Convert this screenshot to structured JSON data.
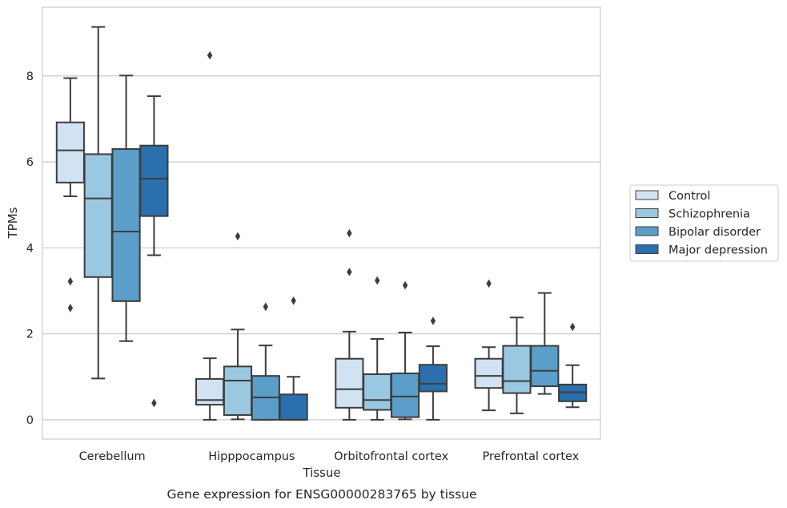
{
  "chart_data": {
    "type": "box",
    "xlabel": "Tissue",
    "ylabel": "TPMs",
    "caption": "Gene expression for ENSG00000283765 by tissue",
    "ylim": [
      -0.45,
      9.6
    ],
    "yticks": [
      0,
      2,
      4,
      6,
      8
    ],
    "grid": "horizontal",
    "legend_position": "right",
    "categories": [
      "Cerebellum",
      "Hipppocampus",
      "Orbitofrontal cortex",
      "Prefrontal cortex"
    ],
    "series": [
      {
        "name": "Control",
        "color": "#d1e2f2",
        "boxes": [
          {
            "whislo": 5.2,
            "q1": 5.52,
            "med": 6.27,
            "q3": 6.92,
            "whishi": 7.95,
            "fliers": [
              3.22,
              2.6
            ]
          },
          {
            "whislo": 0.0,
            "q1": 0.35,
            "med": 0.46,
            "q3": 0.95,
            "whishi": 1.43,
            "fliers": [
              8.48
            ]
          },
          {
            "whislo": 0.0,
            "q1": 0.28,
            "med": 0.71,
            "q3": 1.42,
            "whishi": 2.05,
            "fliers": [
              4.34,
              3.44
            ]
          },
          {
            "whislo": 0.22,
            "q1": 0.74,
            "med": 1.02,
            "q3": 1.42,
            "whishi": 1.69,
            "fliers": [
              3.17
            ]
          }
        ]
      },
      {
        "name": "Schizophrenia",
        "color": "#9ac8e0",
        "boxes": [
          {
            "whislo": 0.96,
            "q1": 3.32,
            "med": 5.15,
            "q3": 6.18,
            "whishi": 9.14,
            "fliers": []
          },
          {
            "whislo": 0.01,
            "q1": 0.11,
            "med": 0.91,
            "q3": 1.24,
            "whishi": 2.1,
            "fliers": [
              4.27
            ]
          },
          {
            "whislo": 0.0,
            "q1": 0.23,
            "med": 0.46,
            "q3": 1.06,
            "whishi": 1.88,
            "fliers": [
              3.24
            ]
          },
          {
            "whislo": 0.15,
            "q1": 0.62,
            "med": 0.9,
            "q3": 1.72,
            "whishi": 2.38,
            "fliers": []
          }
        ]
      },
      {
        "name": "Bipolar disorder",
        "color": "#5a9ec9",
        "boxes": [
          {
            "whislo": 1.83,
            "q1": 2.76,
            "med": 4.38,
            "q3": 6.3,
            "whishi": 8.01,
            "fliers": []
          },
          {
            "whislo": 0.0,
            "q1": 0.0,
            "med": 0.52,
            "q3": 1.02,
            "whishi": 1.73,
            "fliers": [
              2.63
            ]
          },
          {
            "whislo": 0.01,
            "q1": 0.06,
            "med": 0.54,
            "q3": 1.08,
            "whishi": 2.03,
            "fliers": [
              3.13
            ]
          },
          {
            "whislo": 0.6,
            "q1": 0.78,
            "med": 1.14,
            "q3": 1.72,
            "whishi": 2.95,
            "fliers": []
          }
        ]
      },
      {
        "name": "Major depression",
        "color": "#2a6fae",
        "boxes": [
          {
            "whislo": 3.83,
            "q1": 4.74,
            "med": 5.61,
            "q3": 6.38,
            "whishi": 7.53,
            "fliers": [
              0.39
            ]
          },
          {
            "whislo": 0.0,
            "q1": 0.0,
            "med": 0.0,
            "q3": 0.59,
            "whishi": 1.0,
            "fliers": [
              2.77
            ]
          },
          {
            "whislo": 0.0,
            "q1": 0.66,
            "med": 0.84,
            "q3": 1.28,
            "whishi": 1.71,
            "fliers": [
              2.3
            ]
          },
          {
            "whislo": 0.29,
            "q1": 0.43,
            "med": 0.64,
            "q3": 0.82,
            "whishi": 1.27,
            "fliers": [
              2.16
            ]
          }
        ]
      }
    ]
  }
}
